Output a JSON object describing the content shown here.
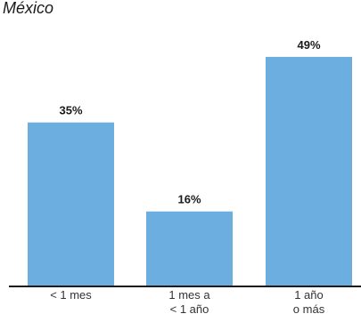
{
  "title": "México",
  "chart_data": {
    "type": "bar",
    "categories": [
      [
        "< 1 mes"
      ],
      [
        "1 mes a",
        "< 1 año"
      ],
      [
        "1 año",
        "o más"
      ]
    ],
    "values": [
      35,
      16,
      49
    ],
    "data_labels": [
      "35%",
      "16%",
      "49%"
    ],
    "ylim": [
      0,
      60
    ],
    "bar_color": "#6daee0",
    "axis_color": "#1a1a1a",
    "grid": false
  }
}
